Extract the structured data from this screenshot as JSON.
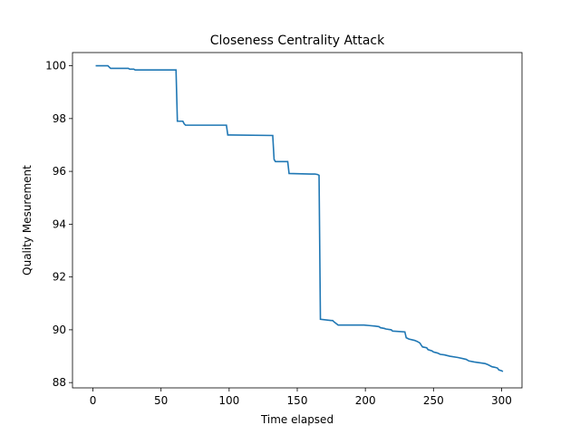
{
  "chart_data": {
    "type": "line",
    "title": "Closeness Centrality Attack",
    "xlabel": "Time elapsed",
    "ylabel": "Quality Mesurement",
    "xlim": [
      -15,
      315
    ],
    "ylim": [
      87.8,
      100.5
    ],
    "xticks": [
      0,
      50,
      100,
      150,
      200,
      250,
      300
    ],
    "yticks": [
      88,
      90,
      92,
      94,
      96,
      98,
      100
    ],
    "grid": false,
    "line_color": "#1f77b4",
    "series": [
      {
        "x": [
          2,
          11,
          12,
          13,
          26,
          27,
          30,
          31,
          61,
          62,
          66,
          67,
          68,
          98,
          99,
          132,
          133,
          134,
          143,
          144,
          160,
          163,
          165,
          166,
          167,
          175,
          176,
          177,
          179,
          180,
          199,
          203,
          207,
          210,
          211,
          214,
          215,
          219,
          220,
          229,
          230,
          232,
          236,
          238,
          240,
          241,
          242,
          245,
          246,
          249,
          250,
          253,
          255,
          258,
          262,
          268,
          274,
          276,
          280,
          288,
          290,
          293,
          295,
          297,
          298,
          300,
          301
        ],
        "values": [
          100.0,
          100.0,
          99.95,
          99.9,
          99.9,
          99.87,
          99.87,
          99.84,
          99.84,
          97.9,
          97.9,
          97.8,
          97.75,
          97.75,
          97.38,
          97.36,
          96.45,
          96.37,
          96.37,
          95.92,
          95.9,
          95.9,
          95.88,
          95.85,
          90.4,
          90.35,
          90.35,
          90.3,
          90.22,
          90.18,
          90.18,
          90.16,
          90.14,
          90.12,
          90.08,
          90.05,
          90.03,
          90.0,
          89.95,
          89.92,
          89.7,
          89.65,
          89.6,
          89.56,
          89.5,
          89.42,
          89.35,
          89.32,
          89.25,
          89.2,
          89.16,
          89.12,
          89.07,
          89.05,
          89.0,
          88.95,
          88.88,
          88.82,
          88.78,
          88.72,
          88.68,
          88.6,
          88.58,
          88.55,
          88.48,
          88.45,
          88.42
        ]
      }
    ]
  }
}
